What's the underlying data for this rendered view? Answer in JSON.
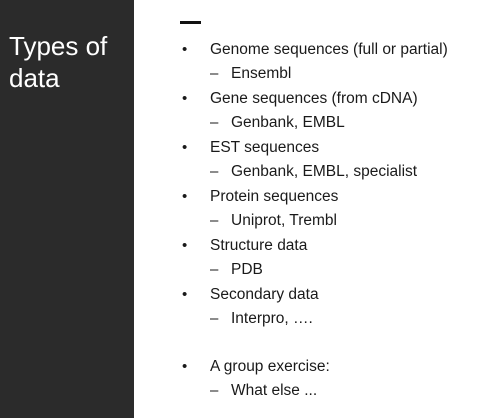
{
  "sidebar": {
    "title": "Types of data",
    "background": "#2b2b2b"
  },
  "main": {
    "bullets": [
      {
        "label": "Genome sequences (full or partial)",
        "sub": "Ensembl"
      },
      {
        "label": "Gene sequences (from cDNA)",
        "sub": "Genbank, EMBL"
      },
      {
        "label": "EST sequences",
        "sub": "Genbank, EMBL, specialist"
      },
      {
        "label": "Protein sequences",
        "sub": "Uniprot, Trembl"
      },
      {
        "label": "Structure data",
        "sub": "PDB"
      },
      {
        "label": "Secondary data",
        "sub": "Interpro, …."
      },
      {
        "label": "A group exercise:",
        "sub": "What else ..."
      }
    ],
    "bullet_glyph": "•",
    "dash_glyph": "–"
  }
}
